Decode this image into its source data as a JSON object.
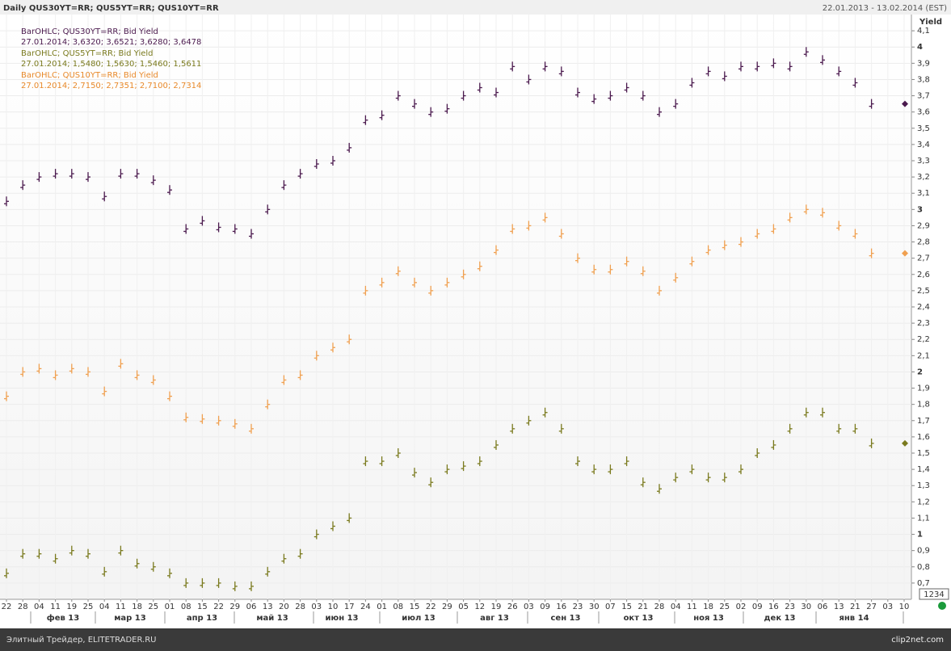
{
  "header": {
    "title": "Daily QUS30YT=RR; QUS5YT=RR; QUS10YT=RR",
    "range": "22.01.2013 - 13.02.2014 (EST)"
  },
  "chart_data": {
    "type": "ohlc",
    "y_label": "Yield",
    "legend": [
      {
        "title": "BarOHLC; QUS30YT=RR; Bid Yield",
        "text": "27.01.2014; 3,6320; 3,6521; 3,6280; 3,6478",
        "color": "#4b1a4e"
      },
      {
        "title": "BarOHLC; QUS5YT=RR; Bid Yield",
        "text": "27.01.2014; 1,5480; 1,5630; 1,5460; 1,5611",
        "color": "#7a7a1e"
      },
      {
        "title": "BarOHLC; QUS10YT=RR; Bid Yield",
        "text": "27.01.2014; 2,7150; 2,7351; 2,7100; 2,7314",
        "color": "#e8892a"
      }
    ],
    "categories": [
      "22",
      "28",
      "04",
      "11",
      "19",
      "25",
      "04",
      "11",
      "18",
      "25",
      "01",
      "08",
      "15",
      "22",
      "29",
      "06",
      "13",
      "20",
      "28",
      "03",
      "10",
      "17",
      "24",
      "01",
      "08",
      "15",
      "22",
      "29",
      "05",
      "12",
      "19",
      "26",
      "03",
      "09",
      "16",
      "23",
      "30",
      "07",
      "15",
      "21",
      "28",
      "04",
      "11",
      "18",
      "25",
      "02",
      "09",
      "16",
      "23",
      "30",
      "06",
      "13",
      "21",
      "27",
      "03",
      "10"
    ],
    "months": [
      "фев 13",
      "мар 13",
      "апр 13",
      "май 13",
      "июн 13",
      "июл 13",
      "авг 13",
      "сен 13",
      "окт 13",
      "ноя 13",
      "дек 13",
      "янв 14"
    ],
    "series": [
      {
        "name": "QUS30YT=RR",
        "color": "#4b1a4e",
        "values": [
          3.05,
          3.15,
          3.2,
          3.22,
          3.22,
          3.2,
          3.08,
          3.22,
          3.22,
          3.18,
          3.12,
          2.88,
          2.93,
          2.89,
          2.88,
          2.85,
          3.0,
          3.15,
          3.22,
          3.28,
          3.3,
          3.38,
          3.55,
          3.58,
          3.7,
          3.65,
          3.6,
          3.62,
          3.7,
          3.75,
          3.72,
          3.88,
          3.8,
          3.88,
          3.85,
          3.72,
          3.68,
          3.7,
          3.75,
          3.7,
          3.6,
          3.65,
          3.78,
          3.85,
          3.82,
          3.88,
          3.88,
          3.9,
          3.88,
          3.97,
          3.92,
          3.85,
          3.78,
          3.65,
          null,
          null
        ]
      },
      {
        "name": "QUS10YT=RR",
        "color": "#f0a050",
        "values": [
          1.85,
          2.0,
          2.02,
          1.98,
          2.02,
          2.0,
          1.88,
          2.05,
          1.98,
          1.95,
          1.85,
          1.72,
          1.71,
          1.7,
          1.68,
          1.65,
          1.8,
          1.95,
          1.98,
          2.1,
          2.15,
          2.2,
          2.5,
          2.55,
          2.62,
          2.55,
          2.5,
          2.55,
          2.6,
          2.65,
          2.75,
          2.88,
          2.9,
          2.95,
          2.85,
          2.7,
          2.63,
          2.63,
          2.68,
          2.62,
          2.5,
          2.58,
          2.68,
          2.75,
          2.78,
          2.8,
          2.85,
          2.88,
          2.95,
          3.0,
          2.98,
          2.9,
          2.85,
          2.73,
          null,
          null
        ]
      },
      {
        "name": "QUS5YT=RR",
        "color": "#7a7a1e",
        "values": [
          0.76,
          0.88,
          0.88,
          0.85,
          0.9,
          0.88,
          0.77,
          0.9,
          0.82,
          0.8,
          0.76,
          0.7,
          0.7,
          0.7,
          0.68,
          0.68,
          0.77,
          0.85,
          0.88,
          1.0,
          1.05,
          1.1,
          1.45,
          1.45,
          1.5,
          1.38,
          1.32,
          1.4,
          1.42,
          1.45,
          1.55,
          1.65,
          1.7,
          1.75,
          1.65,
          1.45,
          1.4,
          1.4,
          1.45,
          1.32,
          1.28,
          1.35,
          1.4,
          1.35,
          1.35,
          1.4,
          1.5,
          1.55,
          1.65,
          1.75,
          1.75,
          1.65,
          1.65,
          1.56,
          null,
          null
        ]
      }
    ],
    "ylim": [
      0.6,
      4.2
    ],
    "yticks": [
      {
        "value": 0.7,
        "label": "0,7"
      },
      {
        "value": 0.8,
        "label": "0,8"
      },
      {
        "value": 0.9,
        "label": "0,9"
      },
      1,
      {
        "value": 1.1,
        "label": "1,1"
      },
      {
        "value": 1.2,
        "label": "1,2"
      },
      {
        "value": 1.3,
        "label": "1,3"
      },
      {
        "value": 1.4,
        "label": "1,4"
      },
      {
        "value": 1.5,
        "label": "1,5"
      },
      {
        "value": 1.6,
        "label": "1,6"
      },
      {
        "value": 1.7,
        "label": "1,7"
      },
      {
        "value": 1.8,
        "label": "1,8"
      },
      {
        "value": 1.9,
        "label": "1,9"
      },
      2,
      {
        "value": 2.1,
        "label": "2,1"
      },
      {
        "value": 2.2,
        "label": "2,2"
      },
      {
        "value": 2.3,
        "label": "2,3"
      },
      {
        "value": 2.4,
        "label": "2,4"
      },
      {
        "value": 2.5,
        "label": "2,5"
      },
      {
        "value": 2.6,
        "label": "2,6"
      },
      {
        "value": 2.7,
        "label": "2,7"
      },
      {
        "value": 2.8,
        "label": "2,8"
      },
      {
        "value": 2.9,
        "label": "2,9"
      },
      3,
      {
        "value": 3.1,
        "label": "3,1"
      },
      {
        "value": 3.2,
        "label": "3,2"
      },
      {
        "value": 3.3,
        "label": "3,3"
      },
      {
        "value": 3.4,
        "label": "3,4"
      },
      {
        "value": 3.5,
        "label": "3,5"
      },
      {
        "value": 3.6,
        "label": "3,6"
      },
      {
        "value": 3.7,
        "label": "3,7"
      },
      {
        "value": 3.8,
        "label": "3,8"
      },
      {
        "value": 3.9,
        "label": "3,9"
      },
      4,
      {
        "value": 4.1,
        "label": "4,1"
      }
    ],
    "grid": true,
    "corner_label": "1234"
  },
  "footer": {
    "left": "Элитный Трейдер, ELITETRADER.RU",
    "right": "clip2net.com"
  }
}
